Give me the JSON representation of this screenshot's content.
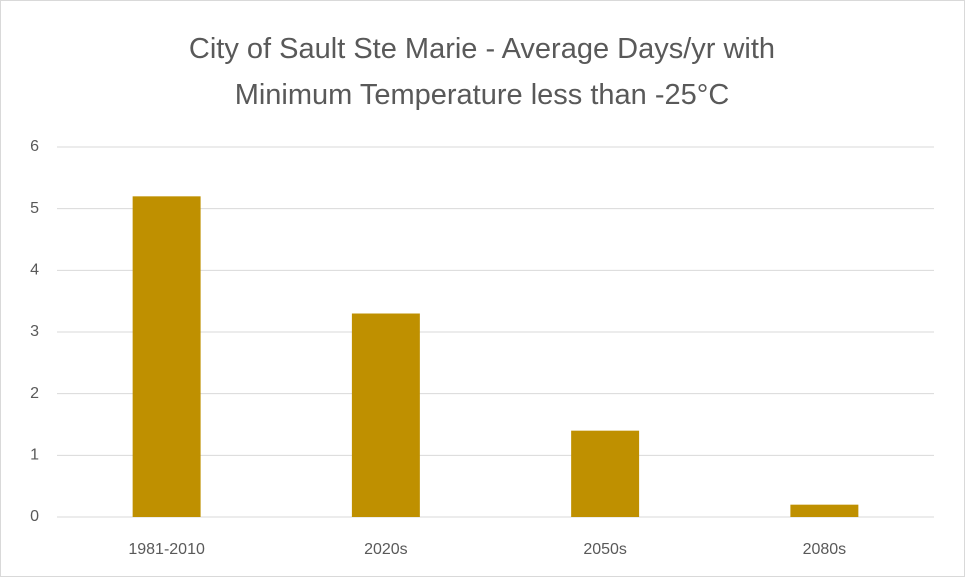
{
  "chart_data": {
    "type": "bar",
    "title": "City of Sault Ste Marie - Average Days/yr with Minimum Temperature less than -25°C",
    "categories": [
      "1981-2010",
      "2020s",
      "2050s",
      "2080s"
    ],
    "values": [
      5.2,
      3.3,
      1.4,
      0.2
    ],
    "color": "#bf9000",
    "ylim": [
      0,
      6
    ],
    "yticks": [
      0,
      1,
      2,
      3,
      4,
      5,
      6
    ],
    "grid": true
  }
}
